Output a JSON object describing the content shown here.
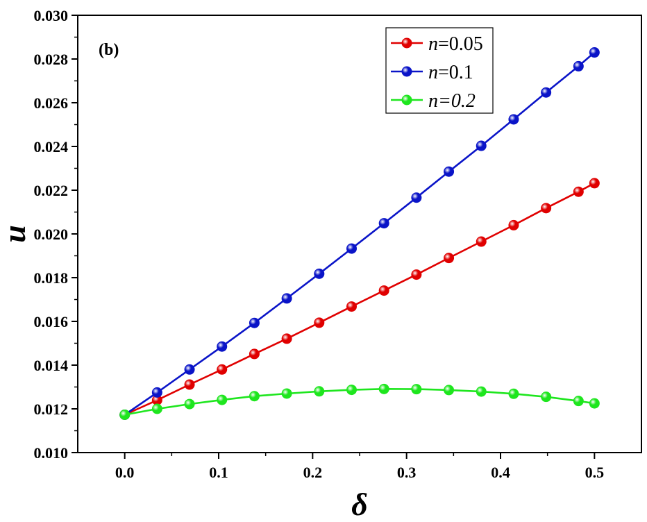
{
  "chart_data": {
    "type": "line",
    "panel_label": "(b)",
    "xlabel": "δ",
    "ylabel": "u",
    "xlim": [
      -0.05,
      0.55
    ],
    "ylim": [
      0.01,
      0.03
    ],
    "x_ticks": [
      0.0,
      0.1,
      0.2,
      0.3,
      0.4,
      0.5
    ],
    "x_tick_labels": [
      "0.0",
      "0.1",
      "0.2",
      "0.3",
      "0.4",
      "0.5"
    ],
    "y_ticks": [
      0.01,
      0.012,
      0.014,
      0.016,
      0.018,
      0.02,
      0.022,
      0.024,
      0.026,
      0.028,
      0.03
    ],
    "y_tick_labels": [
      "0.010",
      "0.012",
      "0.014",
      "0.016",
      "0.018",
      "0.020",
      "0.022",
      "0.024",
      "0.026",
      "0.028",
      "0.030"
    ],
    "legend_position": "top-right",
    "series": [
      {
        "name": "n=0.05",
        "legend_var": "n",
        "legend_value": "=0.05",
        "color": "#e00000",
        "x": [
          0.0,
          0.0345,
          0.069,
          0.1035,
          0.138,
          0.1725,
          0.207,
          0.2415,
          0.276,
          0.3105,
          0.345,
          0.3795,
          0.414,
          0.4485,
          0.483,
          0.5
        ],
        "y": [
          0.01173,
          0.0124,
          0.01311,
          0.0138,
          0.01451,
          0.01521,
          0.01594,
          0.01668,
          0.01741,
          0.01814,
          0.0189,
          0.01965,
          0.0204,
          0.02118,
          0.02193,
          0.02232
        ]
      },
      {
        "name": "n=0.1",
        "legend_var": "n",
        "legend_value": "=0.1",
        "color": "#0a14c8",
        "x": [
          0.0,
          0.0345,
          0.069,
          0.1035,
          0.138,
          0.1725,
          0.207,
          0.2415,
          0.276,
          0.3105,
          0.345,
          0.3795,
          0.414,
          0.4485,
          0.483,
          0.5
        ],
        "y": [
          0.01173,
          0.01275,
          0.0138,
          0.01485,
          0.01593,
          0.01705,
          0.01818,
          0.01933,
          0.02049,
          0.02166,
          0.02285,
          0.02403,
          0.02524,
          0.02647,
          0.02767,
          0.0283
        ]
      },
      {
        "name": "n=0.2",
        "legend_var": "n",
        "legend_value": "=0.2",
        "color": "#1ee61e",
        "x": [
          0.0,
          0.0345,
          0.069,
          0.1035,
          0.138,
          0.1725,
          0.207,
          0.2415,
          0.276,
          0.3105,
          0.345,
          0.3795,
          0.414,
          0.4485,
          0.483,
          0.5
        ],
        "y": [
          0.01173,
          0.012,
          0.01222,
          0.01241,
          0.01258,
          0.0127,
          0.0128,
          0.01287,
          0.01291,
          0.0129,
          0.01286,
          0.01279,
          0.01269,
          0.01255,
          0.01236,
          0.01225
        ]
      }
    ]
  }
}
